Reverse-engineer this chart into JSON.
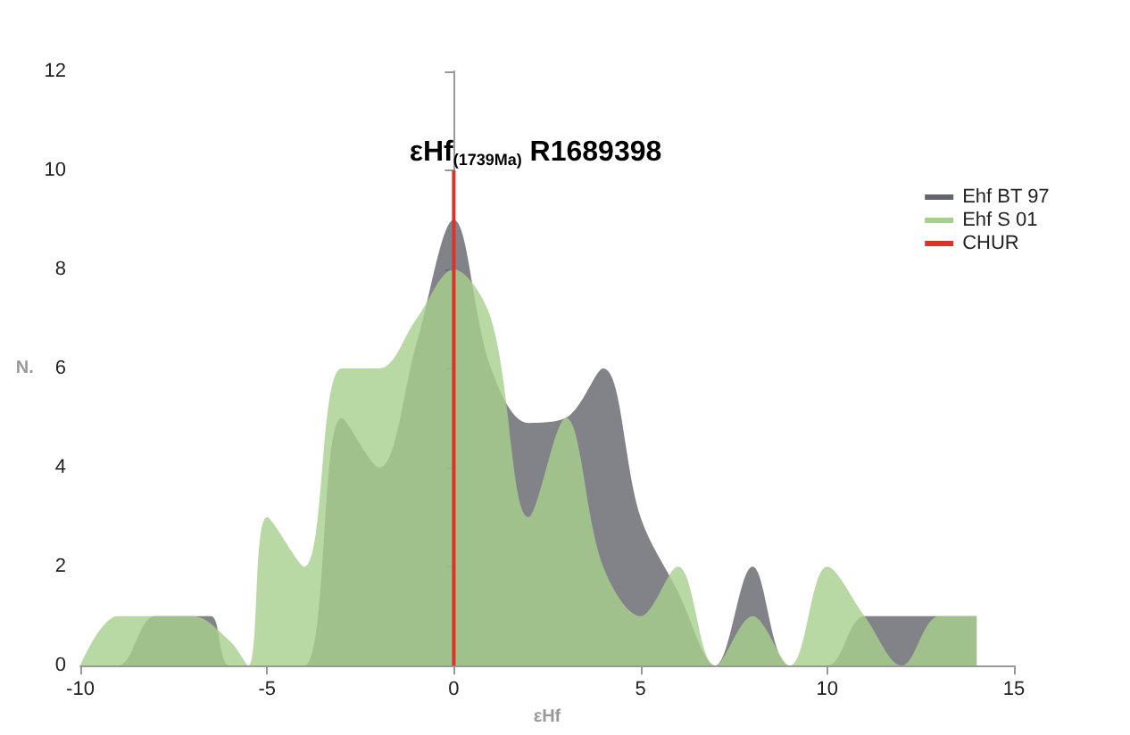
{
  "chart_data": {
    "type": "area",
    "title": "εHf$_{(1739Ma)}$ R1689398",
    "xlabel": "εHf",
    "ylabel": "N.",
    "xlim": [
      -10,
      15
    ],
    "xticks": [
      -10,
      -5,
      0,
      5,
      10,
      15
    ],
    "ylim": [
      0,
      12
    ],
    "yticks": [
      0,
      2,
      4,
      6,
      8,
      10,
      12
    ],
    "grid": false,
    "legend": "top right",
    "marker": "none",
    "series": [
      {
        "name": "CHUR",
        "type": "line",
        "color": "#d9342b",
        "x": [
          0,
          0
        ],
        "values": [
          0,
          10
        ]
      },
      {
        "name": "Ehf BT 97",
        "color": "#63646c",
        "x": [
          -10,
          -9,
          -8,
          -7,
          -6.5,
          -6,
          -5,
          -4,
          -3,
          -2,
          -1,
          0,
          1,
          2,
          3,
          4,
          5,
          6,
          7,
          8,
          9,
          10,
          11,
          12,
          13,
          14
        ],
        "values": [
          0,
          0,
          1,
          1,
          1,
          0,
          0,
          0,
          5,
          4,
          6.5,
          9,
          6,
          4.9,
          5,
          6,
          3,
          1.5,
          0,
          2,
          0,
          0,
          1,
          1,
          1,
          1
        ]
      },
      {
        "name": "Ehf S 01",
        "color": "#a8d08d",
        "x": [
          -10,
          -9,
          -8,
          -7,
          -6,
          -5.5,
          -5,
          -4,
          -3,
          -2,
          -1,
          0,
          1,
          2,
          3,
          4,
          5,
          6,
          7,
          8,
          9,
          10,
          11,
          12,
          13,
          14
        ],
        "values": [
          0,
          1,
          1,
          1,
          0.5,
          0,
          3,
          2,
          6,
          6,
          7,
          8,
          7,
          3,
          5,
          2,
          1,
          2,
          0,
          1,
          0,
          2,
          1,
          0,
          1,
          1
        ]
      }
    ]
  }
}
